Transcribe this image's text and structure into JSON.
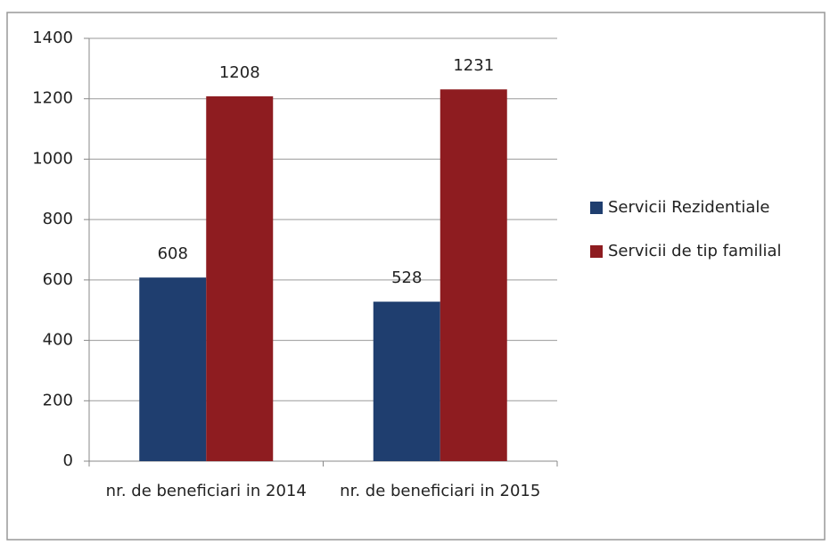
{
  "chart_data": {
    "type": "bar",
    "categories": [
      "nr. de beneficiari in 2014",
      "nr. de beneficiari in 2015"
    ],
    "series": [
      {
        "name": "Servicii Rezidentiale",
        "color": "#1f3e6f",
        "values": [
          608,
          528
        ]
      },
      {
        "name": "Servicii de tip familial",
        "color": "#8e1c20",
        "values": [
          1208,
          1231
        ]
      }
    ],
    "ylim": [
      0,
      1400
    ],
    "yticks": [
      0,
      200,
      400,
      600,
      800,
      1000,
      1200,
      1400
    ],
    "grid": true,
    "legend": "right"
  }
}
